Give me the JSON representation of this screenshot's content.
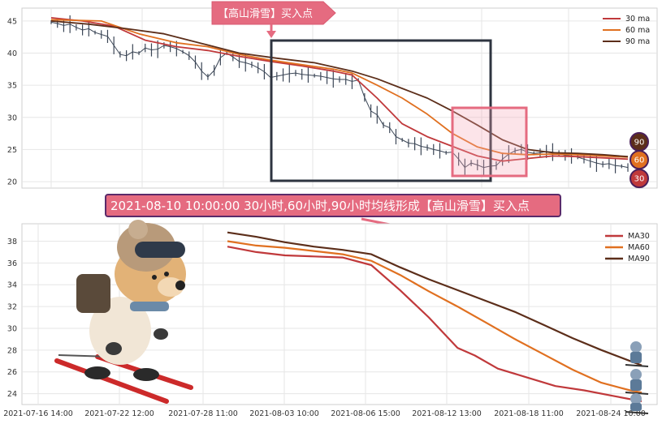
{
  "chart_data": [
    {
      "type": "line",
      "panel": "top",
      "title": "",
      "xlabel": "",
      "ylabel": "",
      "ylim": [
        19,
        47
      ],
      "yticks": [
        20,
        25,
        30,
        35,
        40,
        45
      ],
      "grid": true,
      "legend_position": "top-right",
      "price_series": [
        [
          0,
          44.8
        ],
        [
          1,
          44.6
        ],
        [
          2,
          44.3
        ],
        [
          3,
          44.5
        ],
        [
          4,
          44.0
        ],
        [
          5,
          43.6
        ],
        [
          6,
          43.8
        ],
        [
          7,
          43.2
        ],
        [
          8,
          42.9
        ],
        [
          9,
          42.6
        ],
        [
          10,
          41.2
        ],
        [
          11,
          39.8
        ],
        [
          12,
          39.6
        ],
        [
          13,
          40.2
        ],
        [
          14,
          40.0
        ],
        [
          15,
          40.8
        ],
        [
          16,
          40.5
        ],
        [
          17,
          40.6
        ],
        [
          18,
          41.2
        ],
        [
          19,
          41.0
        ],
        [
          20,
          40.7
        ],
        [
          21,
          40.2
        ],
        [
          22,
          39.6
        ],
        [
          23,
          38.6
        ],
        [
          24,
          37.2
        ],
        [
          25,
          36.3
        ],
        [
          26,
          37.3
        ],
        [
          27,
          39.3
        ],
        [
          28,
          40.0
        ],
        [
          29,
          39.4
        ],
        [
          30,
          38.7
        ],
        [
          31,
          38.5
        ],
        [
          32,
          38.2
        ],
        [
          33,
          37.7
        ],
        [
          34,
          37.1
        ],
        [
          35,
          36.2
        ],
        [
          36,
          36.4
        ],
        [
          37,
          36.6
        ],
        [
          38,
          36.8
        ],
        [
          39,
          36.9
        ],
        [
          40,
          36.7
        ],
        [
          41,
          36.6
        ],
        [
          42,
          36.5
        ],
        [
          43,
          36.4
        ],
        [
          44,
          36.2
        ],
        [
          45,
          36.0
        ],
        [
          46,
          35.9
        ],
        [
          47,
          35.9
        ],
        [
          48,
          35.6
        ],
        [
          49,
          35.8
        ],
        [
          50,
          33.1
        ],
        [
          51,
          31.0
        ],
        [
          52,
          30.4
        ],
        [
          53,
          28.8
        ],
        [
          54,
          28.4
        ],
        [
          55,
          27.0
        ],
        [
          56,
          26.5
        ],
        [
          57,
          26.0
        ],
        [
          58,
          25.9
        ],
        [
          59,
          25.5
        ],
        [
          60,
          25.3
        ],
        [
          61,
          25.0
        ],
        [
          62,
          24.8
        ],
        [
          63,
          24.5
        ],
        [
          64,
          24.6
        ],
        [
          65,
          23.5
        ],
        [
          66,
          22.2
        ],
        [
          67,
          22.9
        ],
        [
          68,
          22.6
        ],
        [
          69,
          22.2
        ],
        [
          70,
          22.4
        ],
        [
          71,
          22.5
        ],
        [
          72,
          23.5
        ],
        [
          73,
          24.3
        ],
        [
          74,
          24.8
        ],
        [
          75,
          25.0
        ],
        [
          76,
          24.6
        ],
        [
          77,
          24.4
        ],
        [
          78,
          24.5
        ],
        [
          79,
          24.7
        ],
        [
          80,
          24.6
        ],
        [
          81,
          24.4
        ],
        [
          82,
          24.1
        ],
        [
          83,
          24.0
        ],
        [
          84,
          23.8
        ],
        [
          85,
          23.5
        ],
        [
          86,
          23.2
        ],
        [
          87,
          22.9
        ],
        [
          88,
          22.7
        ],
        [
          89,
          22.8
        ],
        [
          90,
          22.5
        ],
        [
          91,
          22.4
        ],
        [
          92,
          22.2
        ]
      ],
      "series": [
        {
          "name": "30 ma",
          "color": "#c0393b",
          "width": 1.8,
          "points": [
            [
              0,
              45.5
            ],
            [
              5,
              45.0
            ],
            [
              10,
              44.2
            ],
            [
              15,
              42.0
            ],
            [
              20,
              41.0
            ],
            [
              25,
              40.4
            ],
            [
              30,
              39.5
            ],
            [
              35,
              38.7
            ],
            [
              40,
              38.0
            ],
            [
              45,
              37.2
            ],
            [
              48,
              36.6
            ],
            [
              52,
              33.0
            ],
            [
              56,
              29.0
            ],
            [
              60,
              27.0
            ],
            [
              64,
              25.5
            ],
            [
              68,
              24.0
            ],
            [
              72,
              23.2
            ],
            [
              76,
              23.6
            ],
            [
              80,
              24.0
            ],
            [
              84,
              23.9
            ],
            [
              88,
              23.7
            ],
            [
              92,
              23.5
            ]
          ]
        },
        {
          "name": "60 ma",
          "color": "#e07020",
          "width": 1.8,
          "points": [
            [
              0,
              45.2
            ],
            [
              8,
              45.0
            ],
            [
              14,
              43.0
            ],
            [
              20,
              41.6
            ],
            [
              25,
              41.0
            ],
            [
              30,
              39.8
            ],
            [
              35,
              38.9
            ],
            [
              40,
              38.2
            ],
            [
              45,
              37.5
            ],
            [
              48,
              36.9
            ],
            [
              52,
              35.0
            ],
            [
              56,
              33.0
            ],
            [
              60,
              30.5
            ],
            [
              64,
              27.5
            ],
            [
              68,
              25.4
            ],
            [
              72,
              24.4
            ],
            [
              76,
              24.2
            ],
            [
              80,
              24.3
            ],
            [
              84,
              24.2
            ],
            [
              88,
              24.0
            ],
            [
              92,
              23.8
            ]
          ]
        },
        {
          "name": "90 ma",
          "color": "#5c2e1a",
          "width": 1.8,
          "points": [
            [
              0,
              45.0
            ],
            [
              6,
              44.5
            ],
            [
              12,
              43.8
            ],
            [
              18,
              43.0
            ],
            [
              24,
              41.5
            ],
            [
              30,
              40.0
            ],
            [
              36,
              39.2
            ],
            [
              42,
              38.5
            ],
            [
              48,
              37.2
            ],
            [
              52,
              36.0
            ],
            [
              56,
              34.5
            ],
            [
              60,
              33.0
            ],
            [
              64,
              31.0
            ],
            [
              68,
              28.8
            ],
            [
              72,
              26.5
            ],
            [
              76,
              25.0
            ],
            [
              80,
              24.5
            ],
            [
              84,
              24.4
            ],
            [
              88,
              24.2
            ],
            [
              92,
              23.9
            ]
          ]
        }
      ],
      "right_badges": [
        {
          "label": "90",
          "value": 26.2,
          "color": "#5c2e1a"
        },
        {
          "label": "60",
          "value": 23.4,
          "color": "#e07020"
        },
        {
          "label": "30",
          "value": 20.5,
          "color": "#c0393b"
        }
      ],
      "annotations": {
        "buy_tag": "【高山滑雪】买入点"
      }
    },
    {
      "type": "line",
      "panel": "bottom",
      "title": "",
      "xlabel": "",
      "ylabel": "",
      "ylim": [
        23,
        39.6
      ],
      "yticks": [
        24,
        26,
        28,
        30,
        32,
        34,
        36,
        38
      ],
      "xticks": [
        "2021-07-16 14:00",
        "2021-07-22 12:00",
        "2021-07-28 11:00",
        "2021-08-03 10:00",
        "2021-08-06 15:00",
        "2021-08-12 13:00",
        "2021-08-18 11:00",
        "2021-08-24 10:00"
      ],
      "grid": true,
      "legend_position": "top-right",
      "series": [
        {
          "name": "MA30",
          "color": "#c0393b",
          "width": 2.2,
          "points": [
            [
              0,
              37.5
            ],
            [
              5,
              37.0
            ],
            [
              10,
              36.7
            ],
            [
              15,
              36.6
            ],
            [
              20,
              36.5
            ],
            [
              25,
              35.8
            ],
            [
              30,
              33.5
            ],
            [
              35,
              31.0
            ],
            [
              40,
              28.2
            ],
            [
              43,
              27.5
            ],
            [
              47,
              26.3
            ],
            [
              52,
              25.5
            ],
            [
              57,
              24.7
            ],
            [
              62,
              24.3
            ],
            [
              67,
              23.8
            ],
            [
              72,
              23.3
            ]
          ]
        },
        {
          "name": "MA60",
          "color": "#e07020",
          "width": 2.2,
          "points": [
            [
              0,
              38.0
            ],
            [
              5,
              37.6
            ],
            [
              10,
              37.4
            ],
            [
              15,
              37.1
            ],
            [
              20,
              36.8
            ],
            [
              25,
              36.2
            ],
            [
              30,
              34.9
            ],
            [
              35,
              33.4
            ],
            [
              40,
              32.0
            ],
            [
              45,
              30.5
            ],
            [
              50,
              29.0
            ],
            [
              55,
              27.6
            ],
            [
              60,
              26.2
            ],
            [
              65,
              25.0
            ],
            [
              70,
              24.3
            ],
            [
              72,
              24.1
            ]
          ]
        },
        {
          "name": "MA90",
          "color": "#5c2e1a",
          "width": 2.2,
          "points": [
            [
              0,
              38.8
            ],
            [
              5,
              38.4
            ],
            [
              10,
              37.9
            ],
            [
              15,
              37.5
            ],
            [
              20,
              37.2
            ],
            [
              25,
              36.8
            ],
            [
              30,
              35.6
            ],
            [
              35,
              34.5
            ],
            [
              40,
              33.5
            ],
            [
              45,
              32.5
            ],
            [
              50,
              31.5
            ],
            [
              55,
              30.3
            ],
            [
              60,
              29.1
            ],
            [
              65,
              28.0
            ],
            [
              70,
              27.0
            ],
            [
              72,
              26.6
            ]
          ]
        }
      ]
    }
  ],
  "banner": {
    "text": "2021-08-10 10:00:00 30小时,60小时,90小时均线形成【高山滑雪】买入点"
  }
}
